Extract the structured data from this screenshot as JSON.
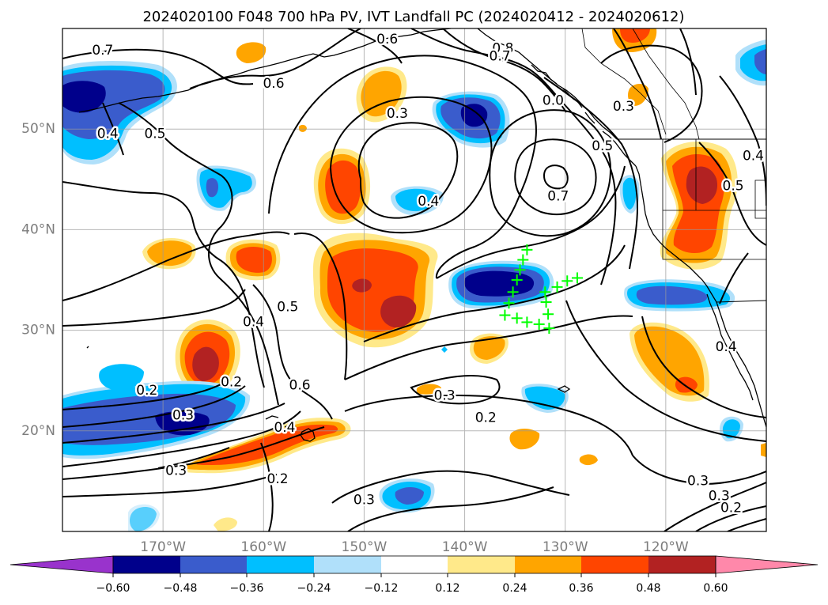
{
  "title": "2024020100 F048 700 hPa PV, IVT Landfall PC (2024020412 - 2024020612)",
  "map": {
    "lon_range": [
      -180,
      -110
    ],
    "lat_range": [
      10,
      60
    ],
    "lat_ticks": [
      {
        "value": 50,
        "label": "50°N"
      },
      {
        "value": 40,
        "label": "40°N"
      },
      {
        "value": 30,
        "label": "30°N"
      },
      {
        "value": 20,
        "label": "20°N"
      }
    ],
    "lon_ticks": [
      {
        "value": -170,
        "label": "170°W"
      },
      {
        "value": -160,
        "label": "160°W"
      },
      {
        "value": -150,
        "label": "150°W"
      },
      {
        "value": -140,
        "label": "140°W"
      },
      {
        "value": -130,
        "label": "130°W"
      },
      {
        "value": -120,
        "label": "120°W"
      }
    ]
  },
  "contour_labels": [
    {
      "text": "0.7",
      "lon": -176.0,
      "lat": 57.8
    },
    {
      "text": "0.6",
      "lon": -159.0,
      "lat": 54.5
    },
    {
      "text": "0.5",
      "lon": -170.8,
      "lat": 49.5
    },
    {
      "text": "0.4",
      "lon": -175.5,
      "lat": 49.5
    },
    {
      "text": "0.6",
      "lon": -147.7,
      "lat": 58.9
    },
    {
      "text": "0.3",
      "lon": -146.7,
      "lat": 51.5
    },
    {
      "text": "0.8",
      "lon": -136.2,
      "lat": 58.0
    },
    {
      "text": "0.7",
      "lon": -136.5,
      "lat": 57.2
    },
    {
      "text": "0.0",
      "lon": -131.2,
      "lat": 52.8
    },
    {
      "text": "0.3",
      "lon": -124.2,
      "lat": 52.2
    },
    {
      "text": "0.5",
      "lon": -126.3,
      "lat": 48.3
    },
    {
      "text": "0.4",
      "lon": -143.6,
      "lat": 42.8
    },
    {
      "text": "0.7",
      "lon": -130.7,
      "lat": 43.3
    },
    {
      "text": "0.4",
      "lon": -111.3,
      "lat": 47.3
    },
    {
      "text": "0.5",
      "lon": -113.3,
      "lat": 44.3
    },
    {
      "text": "0.4",
      "lon": -161.0,
      "lat": 30.8
    },
    {
      "text": "0.5",
      "lon": -157.6,
      "lat": 32.3
    },
    {
      "text": "0.2",
      "lon": -171.6,
      "lat": 24.0
    },
    {
      "text": "0.2",
      "lon": -163.2,
      "lat": 24.8
    },
    {
      "text": "0.6",
      "lon": -156.4,
      "lat": 24.5
    },
    {
      "text": "0.3",
      "lon": -168.0,
      "lat": 21.5
    },
    {
      "text": "0.4",
      "lon": -157.9,
      "lat": 20.3
    },
    {
      "text": "0.3",
      "lon": -168.7,
      "lat": 16.0
    },
    {
      "text": "0.2",
      "lon": -158.6,
      "lat": 15.2
    },
    {
      "text": "0.3",
      "lon": -142.0,
      "lat": 23.5
    },
    {
      "text": "0.2",
      "lon": -137.9,
      "lat": 21.3
    },
    {
      "text": "0.3",
      "lon": -150.0,
      "lat": 13.1
    },
    {
      "text": "0.3",
      "lon": -116.8,
      "lat": 15.0
    },
    {
      "text": "0.3",
      "lon": -114.7,
      "lat": 13.5
    },
    {
      "text": "0.2",
      "lon": -113.5,
      "lat": 12.3
    },
    {
      "text": "0.4",
      "lon": -114.0,
      "lat": 28.3
    }
  ],
  "landfall_points": [
    {
      "lon": -133.8,
      "lat": 38.0
    },
    {
      "lon": -134.2,
      "lat": 37.0
    },
    {
      "lon": -134.5,
      "lat": 36.0
    },
    {
      "lon": -134.8,
      "lat": 35.0
    },
    {
      "lon": -135.2,
      "lat": 33.8
    },
    {
      "lon": -135.6,
      "lat": 32.7
    },
    {
      "lon": -136.0,
      "lat": 31.5
    },
    {
      "lon": -134.8,
      "lat": 31.2
    },
    {
      "lon": -133.8,
      "lat": 30.8
    },
    {
      "lon": -132.6,
      "lat": 30.6
    },
    {
      "lon": -131.6,
      "lat": 30.2
    },
    {
      "lon": -131.7,
      "lat": 31.6
    },
    {
      "lon": -131.9,
      "lat": 32.8
    },
    {
      "lon": -132.0,
      "lat": 33.8
    },
    {
      "lon": -130.8,
      "lat": 34.3
    },
    {
      "lon": -129.8,
      "lat": 34.9
    },
    {
      "lon": -128.8,
      "lat": 35.2
    }
  ],
  "colorbar": {
    "ticks": [
      "−0.60",
      "−0.48",
      "−0.36",
      "−0.24",
      "−0.12",
      "0.12",
      "0.24",
      "0.36",
      "0.48",
      "0.60"
    ],
    "colors": {
      "lt_neg060": "#9933cc",
      "neg060_neg048": "#00008b",
      "neg048_neg036": "#3a5ccc",
      "neg036_neg024": "#00bfff",
      "neg024_neg012": "#b0e0fa",
      "neg012_012": "#ffffff",
      "pos012_024": "#ffe98a",
      "pos024_036": "#ffa500",
      "pos036_048": "#ff4500",
      "pos048_060": "#b22222",
      "gt_060": "#ff88aa"
    }
  }
}
